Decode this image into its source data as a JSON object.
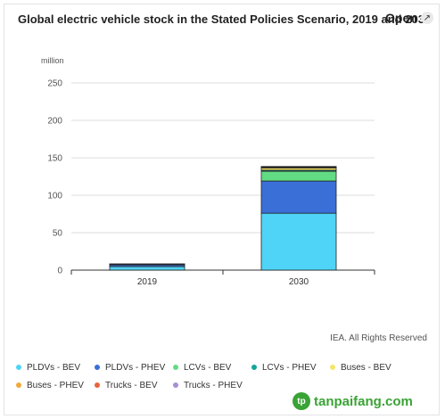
{
  "header": {
    "title": "Global electric vehicle stock in the Stated Policies Scenario, 2019 and 2030",
    "open_label": "Open",
    "open_icon": "external-link-icon"
  },
  "credit": "IEA. All Rights Reserved",
  "watermark": {
    "text": "tanpaifang.com",
    "logo_icon": "tanpaifang-logo-icon"
  },
  "chart_data": {
    "type": "bar",
    "stacked": true,
    "title": "Global electric vehicle stock in the Stated Policies Scenario, 2019 and 2030",
    "ylabel": "million",
    "xlabel": "",
    "ylim": [
      0,
      250
    ],
    "yticks": [
      0,
      50,
      100,
      150,
      200,
      250
    ],
    "grid": true,
    "legend_position": "bottom",
    "categories": [
      "2019",
      "2030"
    ],
    "series": [
      {
        "name": "PLDVs - BEV",
        "color": "#4fd4f7",
        "values": [
          4.8,
          76
        ]
      },
      {
        "name": "PLDVs - PHEV",
        "color": "#3a6fd8",
        "values": [
          2.3,
          43
        ]
      },
      {
        "name": "LCVs - BEV",
        "color": "#62dc84",
        "values": [
          0.4,
          13
        ]
      },
      {
        "name": "LCVs - PHEV",
        "color": "#14a59a",
        "values": [
          0.05,
          1.5
        ]
      },
      {
        "name": "Buses - BEV",
        "color": "#f5e66a",
        "values": [
          0.5,
          3
        ]
      },
      {
        "name": "Buses - PHEV",
        "color": "#f2a93b",
        "values": [
          0.05,
          0.5
        ]
      },
      {
        "name": "Trucks - BEV",
        "color": "#e8643a",
        "values": [
          0.02,
          1.0
        ]
      },
      {
        "name": "Trucks - PHEV",
        "color": "#a58fd6",
        "values": [
          0.01,
          0.4
        ]
      }
    ]
  }
}
